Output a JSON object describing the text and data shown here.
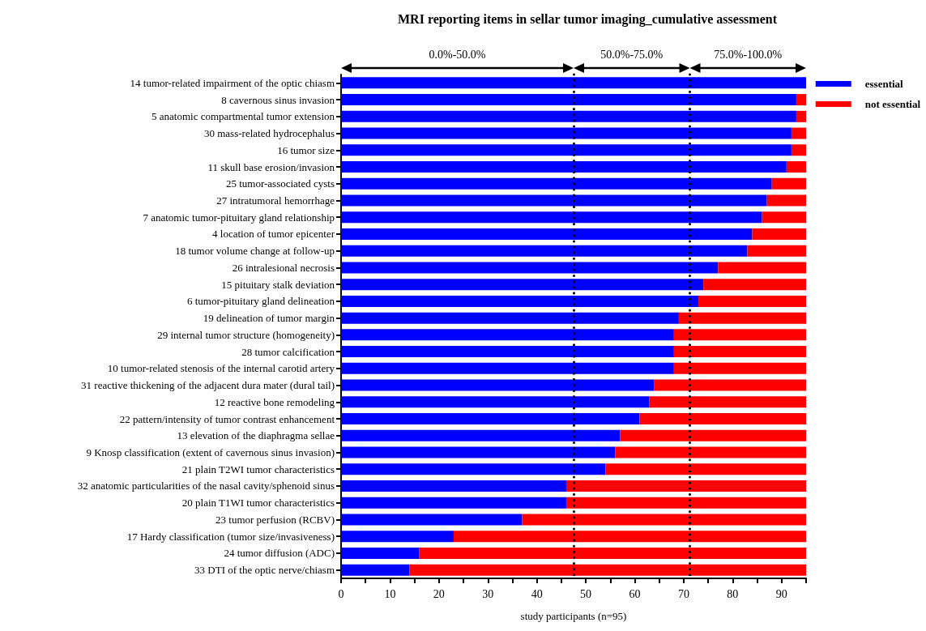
{
  "chart_data": {
    "type": "bar",
    "orientation": "horizontal",
    "stacked": true,
    "title": "MRI reporting items in sellar tumor imaging_cumulative assessment",
    "xlabel": "study participants (n=95)",
    "categories": [
      "14 tumor-related impairment of the optic chiasm",
      "8 cavernous sinus invasion",
      "5 anatomic compartmental tumor extension",
      "30 mass-related hydrocephalus",
      "16 tumor size",
      "11 skull base erosion/invasion",
      "25 tumor-associated cysts",
      "27 intratumoral hemorrhage",
      "7 anatomic tumor-pituitary gland relationship",
      "4 location of tumor epicenter",
      "18 tumor volume change at follow-up",
      "26 intralesional necrosis",
      "15 pituitary stalk deviation",
      "6 tumor-pituitary gland delineation",
      "19 delineation of tumor margin",
      "29 internal tumor structure (homogeneity)",
      "28 tumor calcification",
      "10 tumor-related stenosis of the internal carotid artery",
      "31 reactive thickening of the adjacent dura mater (dural tail)",
      "12 reactive bone remodeling",
      "22 pattern/intensity of tumor contrast enhancement",
      "13 elevation of the diaphragma sellae",
      "9 Knosp classification (extent of cavernous sinus invasion)",
      "21 plain T2WI tumor characteristics",
      "32 anatomic particularities of the nasal cavity/sphenoid sinus",
      "20 plain T1WI tumor characteristics",
      "23 tumor perfusion (RCBV)",
      "17 Hardy classification (tumor size/invasiveness)",
      "24 tumor diffusion (ADC)",
      "33 DTI of the optic nerve/chiasm"
    ],
    "series": [
      {
        "name": "essential",
        "color": "#0000ff",
        "values": [
          95,
          93,
          93,
          92,
          92,
          91,
          88,
          87,
          86,
          84,
          83,
          77,
          74,
          73,
          69,
          68,
          68,
          68,
          64,
          63,
          61,
          57,
          56,
          54,
          46,
          46,
          37,
          23,
          16,
          14
        ]
      },
      {
        "name": "not essential",
        "color": "#ff0000",
        "values": [
          0,
          2,
          2,
          3,
          3,
          4,
          7,
          8,
          9,
          11,
          12,
          18,
          21,
          22,
          26,
          27,
          27,
          27,
          31,
          32,
          34,
          38,
          39,
          41,
          49,
          49,
          58,
          72,
          79,
          81
        ]
      }
    ],
    "xlim": [
      0,
      95
    ],
    "xticks": [
      0,
      {
        "value": 5,
        "label": null
      },
      10,
      {
        "value": 15,
        "label": null
      },
      20,
      {
        "value": 25,
        "label": null
      },
      30,
      {
        "value": 35,
        "label": null
      },
      40,
      {
        "value": 45,
        "label": null
      },
      50,
      {
        "value": 55,
        "label": null
      },
      60,
      {
        "value": 65,
        "label": null
      },
      70,
      {
        "value": 75,
        "label": null
      },
      80,
      {
        "value": 85,
        "label": null
      },
      90,
      {
        "value": 95,
        "label": null
      }
    ],
    "ref_lines": [
      {
        "axis": "x",
        "value": 47.5,
        "color": "#000000",
        "line_style": "dotted"
      },
      {
        "axis": "x",
        "value": 71.25,
        "color": "#000000",
        "line_style": "dotted"
      }
    ],
    "annotations": [
      "0.0%-50.0%",
      "50.0%-75.0%",
      "75.0%-100.0%"
    ],
    "legend": "top right",
    "grid": false
  }
}
